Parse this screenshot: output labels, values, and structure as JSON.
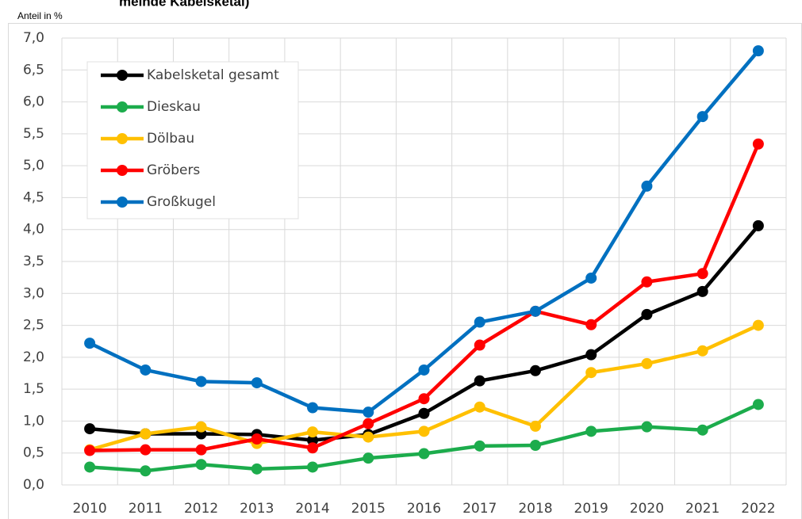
{
  "chart_data": {
    "type": "line",
    "title": "meinde Kabelsketal)",
    "y_label": "Anteil in %",
    "categories": [
      "2010",
      "2011",
      "2012",
      "2013",
      "2014",
      "2015",
      "2016",
      "2017",
      "2018",
      "2019",
      "2020",
      "2021",
      "2022"
    ],
    "series": [
      {
        "name": "Kabelsketal gesamt",
        "color": "#000000",
        "values": [
          0.88,
          0.8,
          0.8,
          0.79,
          0.7,
          0.79,
          1.12,
          1.63,
          1.79,
          2.04,
          2.67,
          3.03,
          4.06
        ]
      },
      {
        "name": "Dieskau",
        "color": "#1cac4c",
        "values": [
          0.28,
          0.22,
          0.32,
          0.25,
          0.28,
          0.42,
          0.49,
          0.61,
          0.62,
          0.84,
          0.91,
          0.86,
          1.26
        ]
      },
      {
        "name": "Dölbau",
        "color": "#ffc000",
        "values": [
          0.55,
          0.8,
          0.91,
          0.65,
          0.83,
          0.75,
          0.84,
          1.22,
          0.92,
          1.76,
          1.9,
          2.1,
          2.5
        ]
      },
      {
        "name": "Gröbers",
        "color": "#ff0000",
        "values": [
          0.54,
          0.55,
          0.55,
          0.72,
          0.58,
          0.96,
          1.35,
          2.19,
          2.72,
          2.51,
          3.18,
          3.31,
          5.34
        ]
      },
      {
        "name": "Großkugel",
        "color": "#0070c0",
        "values": [
          2.22,
          1.8,
          1.62,
          1.6,
          1.21,
          1.14,
          1.8,
          2.55,
          2.72,
          3.24,
          4.68,
          5.77,
          6.8
        ]
      }
    ],
    "ylim": [
      0,
      7
    ],
    "yticks": [
      {
        "value": 0,
        "label": "0,0"
      },
      {
        "value": 0.5,
        "label": "0,5"
      },
      {
        "value": 1,
        "label": "1,0"
      },
      {
        "value": 1.5,
        "label": "1,5"
      },
      {
        "value": 2,
        "label": "2,0"
      },
      {
        "value": 2.5,
        "label": "2,5"
      },
      {
        "value": 3,
        "label": "3,0"
      },
      {
        "value": 3.5,
        "label": "3,5"
      },
      {
        "value": 4,
        "label": "4,0"
      },
      {
        "value": 4.5,
        "label": "4,5"
      },
      {
        "value": 5,
        "label": "5,0"
      },
      {
        "value": 5.5,
        "label": "5,5"
      },
      {
        "value": 6,
        "label": "6,0"
      },
      {
        "value": 6.5,
        "label": "6,5"
      },
      {
        "value": 7,
        "label": "7,0"
      }
    ],
    "grid": true,
    "legend": "upper left"
  }
}
